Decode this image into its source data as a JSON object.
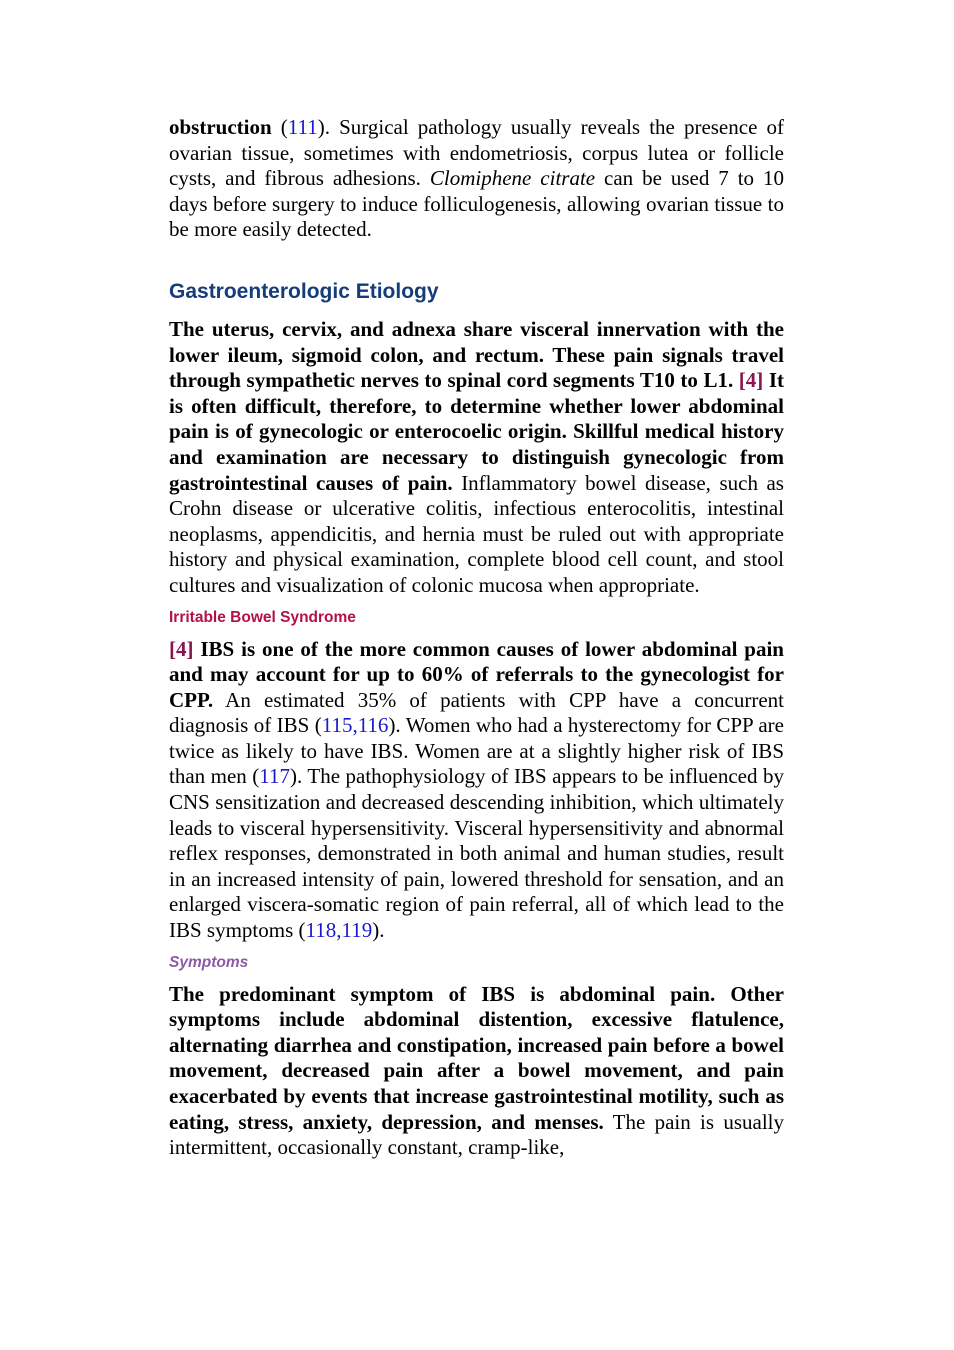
{
  "para1": {
    "lead_bold": "obstruction",
    "open1": " (",
    "ref1": "111",
    "text1": "). Surgical pathology usually reveals the presence of ovarian tissue, sometimes with endometriosis, corpus lutea or follicle cysts, and fibrous adhesions. ",
    "italic": "Clomiphene citrate",
    "text2": " can be used 7 to 10 days before surgery to induce folliculogenesis, allowing ovarian tissue to be more easily detected."
  },
  "section_gastro": {
    "heading": "Gastroenterologic Etiology",
    "bold1": "The uterus, cervix, and adnexa share visceral innervation with the lower ileum, sigmoid colon, and rectum. These pain signals travel through sympathetic nerves to spinal cord segments T10 to L1. ",
    "ref": "[4]",
    "bold2": " It is often difficult, therefore, to determine whether lower abdominal pain is of gynecologic or enterocoelic origin. Skillful medical history and examination are necessary to distinguish gynecologic from gastrointestinal causes of pain.",
    "text": " Inflammatory bowel disease, such as Crohn disease or ulcerative colitis, infectious enterocolitis, intestinal neoplasms, appendicitis, and hernia must be ruled out with appropriate history and physical examination, complete blood cell count, and stool cultures and visualization of colonic mucosa when appropriate."
  },
  "section_ibs": {
    "heading": "Irritable Bowel Syndrome",
    "ref": "[4]",
    "bold": " IBS is one of the more common causes of lower abdominal pain and may account for up to 60% of referrals to the gynecologist for CPP.",
    "text1": " An estimated 35% of patients with CPP have a concurrent diagnosis of IBS (",
    "ref_a": "115",
    "comma_a": ",",
    "ref_b": "116",
    "text2": "). Women who had a hysterectomy for CPP are twice as likely to have IBS. Women are at a slightly higher risk of IBS than men (",
    "ref_c": "117",
    "text3": "). The pathophysiology of IBS appears to be influenced by CNS sensitization and decreased descending inhibition, which ultimately leads to visceral hypersensitivity. Visceral hypersensitivity and abnormal reflex responses, demonstrated in both animal and human studies, result in an increased intensity of pain, lowered threshold for sensation, and an enlarged viscera-somatic region of pain referral, all of which lead to the IBS symptoms (",
    "ref_d": "118",
    "comma_d": ",",
    "ref_e": "119",
    "text4": ")."
  },
  "section_symptoms": {
    "heading": "Symptoms",
    "bold": "The predominant symptom of IBS is abdominal pain. Other symptoms include abdominal distention, excessive flatulence, alternating diarrhea and constipation, increased pain before a bowel movement, decreased pain after a bowel movement, and pain exacerbated by events that increase gastrointestinal motility, such as eating, stress, anxiety, depression, and menses.",
    "text": " The pain is usually intermittent, occasionally constant, cramp-like,"
  }
}
